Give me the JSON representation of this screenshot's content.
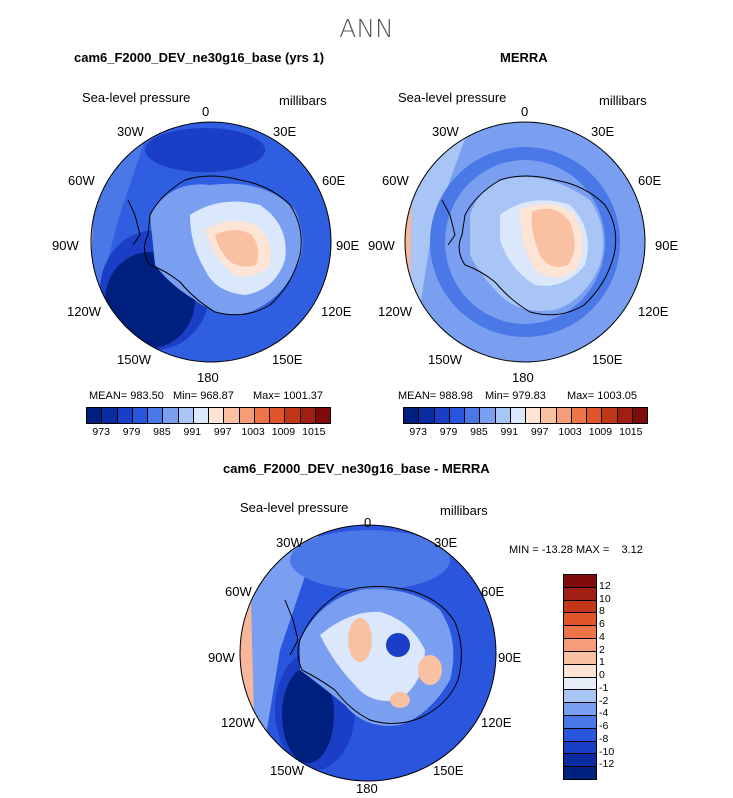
{
  "season": "ANN",
  "panels": [
    {
      "title": "cam6_F2000_DEV_ne30g16_base (yrs 1)",
      "variable": "Sea-level pressure",
      "units": "millibars",
      "stats": {
        "mean": "MEAN= 983.50",
        "min": "Min= 968.87",
        "max": "Max= 1001.37"
      },
      "colorbar": {
        "labels": [
          "973",
          "979",
          "985",
          "991",
          "997",
          "1003",
          "1009",
          "1015"
        ],
        "colors": [
          "#00207f",
          "#0a2ca0",
          "#1a3fc6",
          "#2a55dd",
          "#4a78e6",
          "#7a9ff0",
          "#a9c5f6",
          "#dbe7fa",
          "#fde4d4",
          "#f9c0a2",
          "#f59d79",
          "#ef7548",
          "#e0542a",
          "#c2361a",
          "#a01f12",
          "#7f0c0a"
        ]
      },
      "lon_labels": [
        "0",
        "30E",
        "60E",
        "90E",
        "120E",
        "150E",
        "180",
        "150W",
        "120W",
        "90W",
        "60W",
        "30W"
      ]
    },
    {
      "title": "MERRA",
      "variable": "Sea-level pressure",
      "units": "millibars",
      "stats": {
        "mean": "MEAN= 988.98",
        "min": "Min= 979.83",
        "max": "Max= 1003.05"
      },
      "colorbar": {
        "labels": [
          "973",
          "979",
          "985",
          "991",
          "997",
          "1003",
          "1009",
          "1015"
        ],
        "colors": [
          "#00207f",
          "#0a2ca0",
          "#1a3fc6",
          "#2a55dd",
          "#4a78e6",
          "#7a9ff0",
          "#a9c5f6",
          "#dbe7fa",
          "#fde4d4",
          "#f9c0a2",
          "#f59d79",
          "#ef7548",
          "#e0542a",
          "#c2361a",
          "#a01f12",
          "#7f0c0a"
        ]
      },
      "lon_labels": [
        "0",
        "30E",
        "60E",
        "90E",
        "120E",
        "150E",
        "180",
        "150W",
        "120W",
        "90W",
        "60W",
        "30W"
      ]
    },
    {
      "title": "cam6_F2000_DEV_ne30g16_base - MERRA",
      "variable": "Sea-level pressure",
      "units": "millibars",
      "stats": {
        "minmax": "MIN = -13.28 MAX =    3.12"
      },
      "colorbar": {
        "labels": [
          "12",
          "10",
          "8",
          "6",
          "4",
          "2",
          "1",
          "0",
          "-1",
          "-2",
          "-4",
          "-6",
          "-8",
          "-10",
          "-12"
        ],
        "colors": [
          "#7f0c0a",
          "#a01f12",
          "#c2361a",
          "#e0542a",
          "#ef7548",
          "#f59d79",
          "#f9c0a2",
          "#fde4d4",
          "#e8eef8",
          "#a9c5f6",
          "#7a9ff0",
          "#4a78e6",
          "#2a55dd",
          "#1a3fc6",
          "#0a2ca0",
          "#00207f"
        ]
      },
      "lon_labels": [
        "0",
        "30E",
        "60E",
        "90E",
        "120E",
        "150E",
        "180",
        "150W",
        "120W",
        "90W",
        "60W",
        "30W"
      ]
    }
  ],
  "colors": {
    "deep_blue": "#0a2a9a",
    "mid_blue": "#2f5fe0",
    "light_blue": "#8fb0f0",
    "pale_blue": "#cfdcf6",
    "peach": "#f9c8b0",
    "salmon": "#f5a27e"
  }
}
